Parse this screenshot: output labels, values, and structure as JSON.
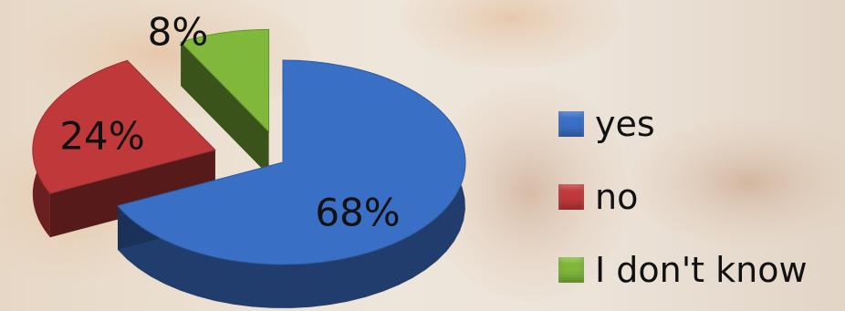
{
  "chart_data": {
    "type": "pie",
    "categories": [
      "yes",
      "no",
      "I don't know"
    ],
    "values": [
      68,
      24,
      8
    ],
    "value_labels": [
      "68%",
      "24%",
      "8%"
    ],
    "colors": [
      "#3a6fc6",
      "#c0393a",
      "#7fb83a"
    ],
    "legend_position": "right",
    "title": "",
    "style": "3d-exploded"
  }
}
